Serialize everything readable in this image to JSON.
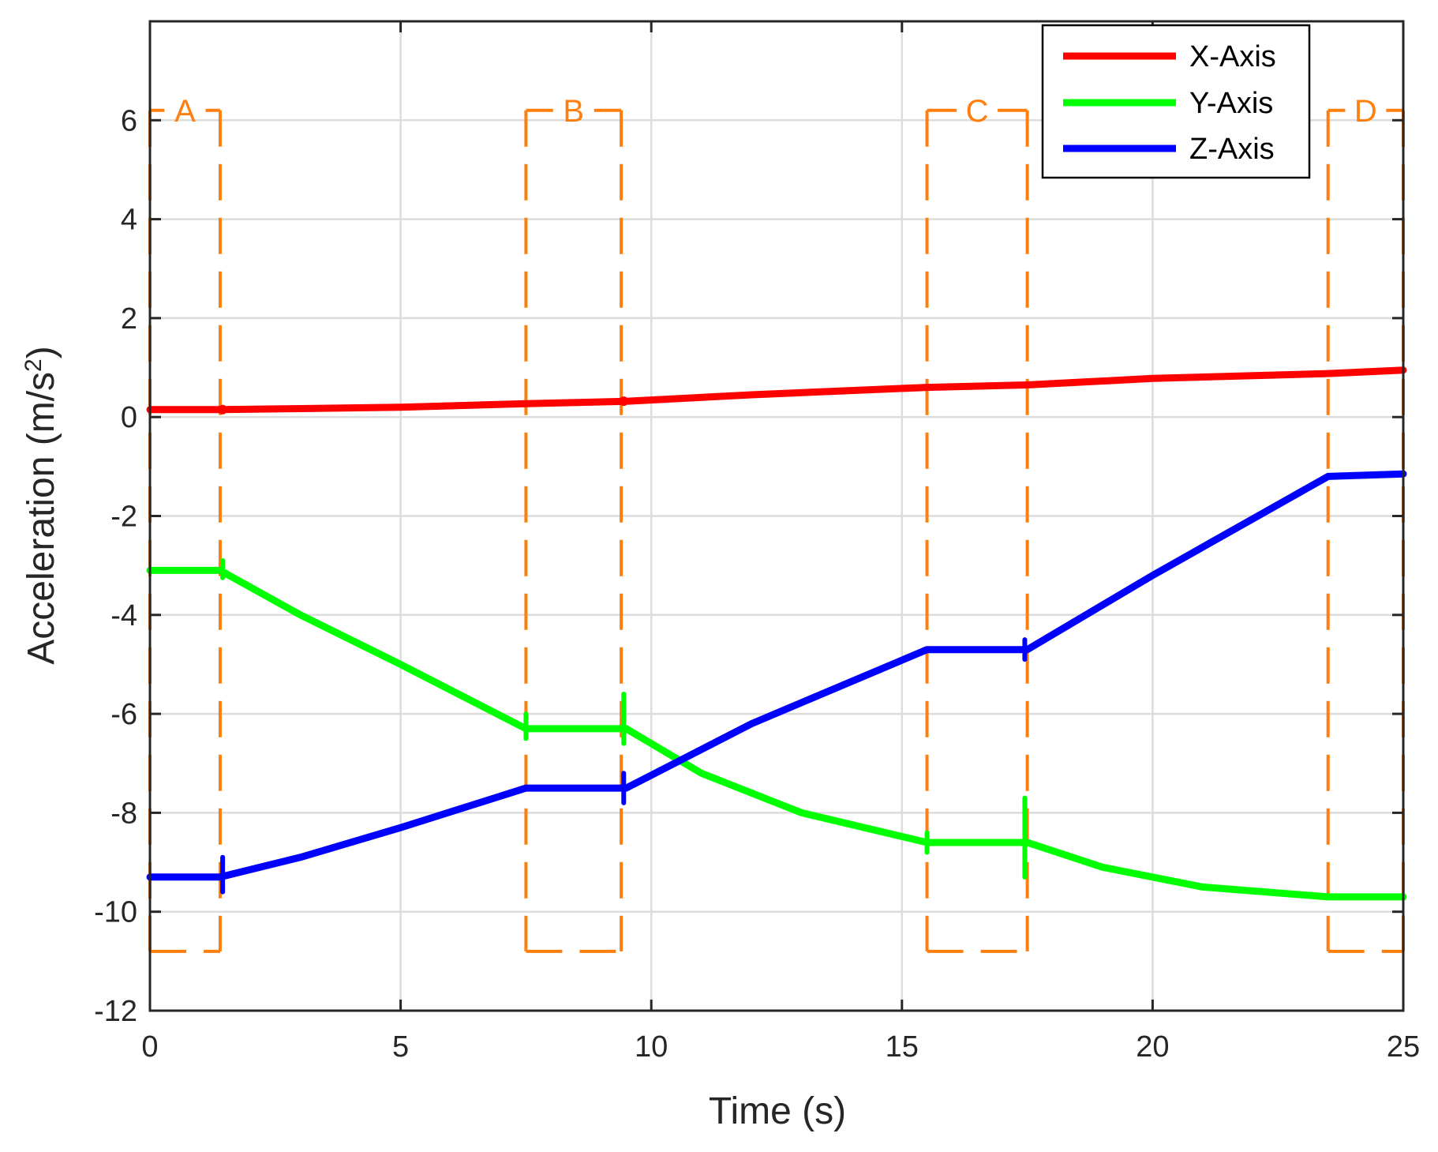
{
  "chart_data": {
    "type": "line",
    "title": "",
    "xlabel": "Time (s)",
    "ylabel_main": "Acceleration (m/s",
    "ylabel_sup": "2",
    "ylabel_end": ")",
    "xlim": [
      0,
      25
    ],
    "ylim": [
      -12,
      8
    ],
    "xticks": [
      0,
      5,
      10,
      15,
      20,
      25
    ],
    "yticks": [
      -12,
      -10,
      -8,
      -6,
      -4,
      -2,
      0,
      2,
      4,
      6
    ],
    "xtick_labels": [
      "0",
      "5",
      "10",
      "15",
      "20",
      "25"
    ],
    "ytick_labels": [
      "-12",
      "-10",
      "-8",
      "-6",
      "-4",
      "-2",
      "0",
      "2",
      "4",
      "6"
    ],
    "grid": true,
    "legend_position": "top-right",
    "series": [
      {
        "name": "X-Axis",
        "color": "#ff0000",
        "x": [
          0,
          1.4,
          3,
          5,
          7.5,
          9.5,
          12,
          15.5,
          17.5,
          20,
          23.5,
          25
        ],
        "y": [
          0.15,
          0.15,
          0.17,
          0.2,
          0.27,
          0.32,
          0.45,
          0.6,
          0.65,
          0.78,
          0.88,
          0.95
        ]
      },
      {
        "name": "Y-Axis",
        "color": "#00ff00",
        "x": [
          0,
          1.4,
          3,
          5,
          7.5,
          9.5,
          11,
          13,
          15.5,
          17.5,
          19,
          21,
          23.5,
          25
        ],
        "y": [
          -3.1,
          -3.1,
          -4.0,
          -5.0,
          -6.3,
          -6.3,
          -7.2,
          -8.0,
          -8.6,
          -8.6,
          -9.1,
          -9.5,
          -9.7,
          -9.7
        ]
      },
      {
        "name": "Z-Axis",
        "color": "#0000ff",
        "x": [
          0,
          1.4,
          3,
          5,
          7.5,
          9.5,
          12,
          15.5,
          17.5,
          20,
          23.5,
          25
        ],
        "y": [
          -9.3,
          -9.3,
          -8.9,
          -8.3,
          -7.5,
          -7.5,
          -6.2,
          -4.7,
          -4.7,
          -3.2,
          -1.2,
          -1.15
        ]
      }
    ],
    "regions": [
      {
        "label": "A",
        "x_start": 0,
        "x_end": 1.4,
        "y_top": 6.2,
        "y_bottom": -10.8
      },
      {
        "label": "B",
        "x_start": 7.5,
        "x_end": 9.4,
        "y_top": 6.2,
        "y_bottom": -10.8
      },
      {
        "label": "C",
        "x_start": 15.5,
        "x_end": 17.5,
        "y_top": 6.2,
        "y_bottom": -10.8
      },
      {
        "label": "D",
        "x_start": 23.5,
        "x_end": 25,
        "y_top": 6.2,
        "y_bottom": -10.8
      }
    ],
    "transition_spikes": [
      {
        "series": "Y-Axis",
        "x": 1.45,
        "y_min": -3.25,
        "y_max": -2.9
      },
      {
        "series": "Z-Axis",
        "x": 1.45,
        "y_min": -9.6,
        "y_max": -8.9
      },
      {
        "series": "Y-Axis",
        "x": 7.5,
        "y_min": -6.5,
        "y_max": -6.0
      },
      {
        "series": "Y-Axis",
        "x": 9.45,
        "y_min": -6.6,
        "y_max": -5.6
      },
      {
        "series": "Z-Axis",
        "x": 9.45,
        "y_min": -7.8,
        "y_max": -7.2
      },
      {
        "series": "Y-Axis",
        "x": 15.5,
        "y_min": -8.8,
        "y_max": -8.4
      },
      {
        "series": "Y-Axis",
        "x": 17.45,
        "y_min": -9.3,
        "y_max": -7.7
      },
      {
        "series": "Z-Axis",
        "x": 17.45,
        "y_min": -4.9,
        "y_max": -4.5
      }
    ],
    "colors": {
      "region": "#ff7f0e",
      "grid": "#dcdcdc",
      "axis": "#262626"
    }
  }
}
